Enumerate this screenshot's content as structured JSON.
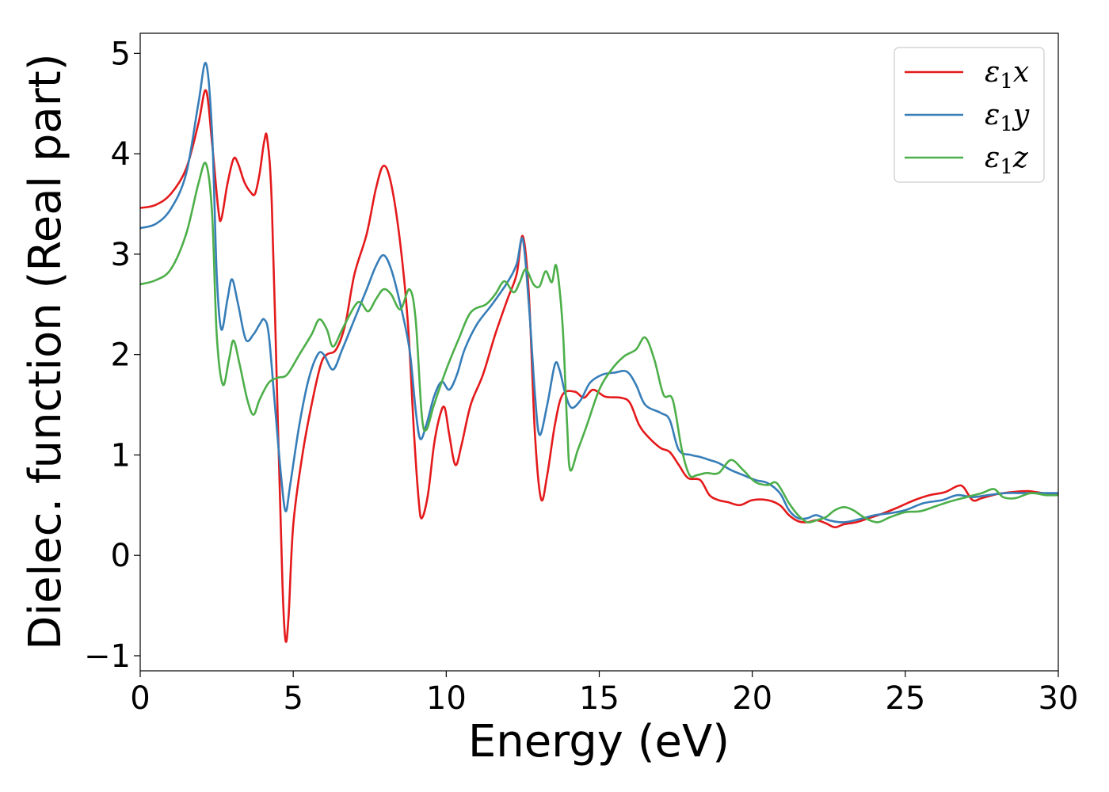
{
  "chart_data": {
    "type": "line",
    "xlabel": "Energy (eV)",
    "ylabel": "Dielec. function (Real part)",
    "xlim": [
      0,
      30
    ],
    "ylim": [
      -1.15,
      5.2
    ],
    "xticks": [
      0,
      5,
      10,
      15,
      20,
      25,
      30
    ],
    "xtick_labels": [
      "0",
      "5",
      "10",
      "15",
      "20",
      "25",
      "30"
    ],
    "yticks": [
      -1,
      0,
      1,
      2,
      3,
      4,
      5
    ],
    "ytick_labels": [
      "−1",
      "0",
      "1",
      "2",
      "3",
      "4",
      "5"
    ],
    "grid": false,
    "legend_position": "top-right",
    "series": [
      {
        "name": "ε1x",
        "label_base": "ε",
        "label_sub": "1",
        "label_var": "x",
        "color": "#e41a1c",
        "points": [
          [
            0,
            3.46
          ],
          [
            0.5,
            3.49
          ],
          [
            1.0,
            3.6
          ],
          [
            1.5,
            3.85
          ],
          [
            1.9,
            4.3
          ],
          [
            2.15,
            4.63
          ],
          [
            2.35,
            4.1
          ],
          [
            2.55,
            3.45
          ],
          [
            2.65,
            3.35
          ],
          [
            2.85,
            3.7
          ],
          [
            3.05,
            3.95
          ],
          [
            3.2,
            3.9
          ],
          [
            3.4,
            3.72
          ],
          [
            3.6,
            3.62
          ],
          [
            3.75,
            3.6
          ],
          [
            3.9,
            3.8
          ],
          [
            4.05,
            4.12
          ],
          [
            4.15,
            4.15
          ],
          [
            4.3,
            3.5
          ],
          [
            4.5,
            1.3
          ],
          [
            4.65,
            -0.3
          ],
          [
            4.75,
            -0.85
          ],
          [
            4.85,
            -0.6
          ],
          [
            5.0,
            0.3
          ],
          [
            5.3,
            1.0
          ],
          [
            5.6,
            1.5
          ],
          [
            5.9,
            1.9
          ],
          [
            6.1,
            2.0
          ],
          [
            6.4,
            2.05
          ],
          [
            6.7,
            2.3
          ],
          [
            7.0,
            2.8
          ],
          [
            7.4,
            3.2
          ],
          [
            7.7,
            3.65
          ],
          [
            7.95,
            3.88
          ],
          [
            8.2,
            3.7
          ],
          [
            8.5,
            3.1
          ],
          [
            8.75,
            2.3
          ],
          [
            8.95,
            1.2
          ],
          [
            9.1,
            0.55
          ],
          [
            9.2,
            0.37
          ],
          [
            9.4,
            0.6
          ],
          [
            9.6,
            1.1
          ],
          [
            9.8,
            1.4
          ],
          [
            9.95,
            1.47
          ],
          [
            10.1,
            1.2
          ],
          [
            10.3,
            0.9
          ],
          [
            10.5,
            1.1
          ],
          [
            10.8,
            1.5
          ],
          [
            11.2,
            1.8
          ],
          [
            11.6,
            2.2
          ],
          [
            12.0,
            2.55
          ],
          [
            12.3,
            2.8
          ],
          [
            12.5,
            3.18
          ],
          [
            12.7,
            2.6
          ],
          [
            12.9,
            1.2
          ],
          [
            13.1,
            0.56
          ],
          [
            13.3,
            0.8
          ],
          [
            13.55,
            1.3
          ],
          [
            13.8,
            1.6
          ],
          [
            14.2,
            1.63
          ],
          [
            14.5,
            1.57
          ],
          [
            14.8,
            1.65
          ],
          [
            15.2,
            1.58
          ],
          [
            15.7,
            1.57
          ],
          [
            16.0,
            1.52
          ],
          [
            16.3,
            1.3
          ],
          [
            16.6,
            1.18
          ],
          [
            17.0,
            1.07
          ],
          [
            17.3,
            1.03
          ],
          [
            17.6,
            0.9
          ],
          [
            17.9,
            0.77
          ],
          [
            18.3,
            0.75
          ],
          [
            18.6,
            0.6
          ],
          [
            18.9,
            0.55
          ],
          [
            19.2,
            0.53
          ],
          [
            19.6,
            0.5
          ],
          [
            20.0,
            0.55
          ],
          [
            20.5,
            0.55
          ],
          [
            20.9,
            0.5
          ],
          [
            21.2,
            0.4
          ],
          [
            21.5,
            0.34
          ],
          [
            21.8,
            0.33
          ],
          [
            22.1,
            0.35
          ],
          [
            22.4,
            0.32
          ],
          [
            22.7,
            0.28
          ],
          [
            23.0,
            0.31
          ],
          [
            23.4,
            0.33
          ],
          [
            23.8,
            0.37
          ],
          [
            24.2,
            0.41
          ],
          [
            24.7,
            0.47
          ],
          [
            25.3,
            0.55
          ],
          [
            25.8,
            0.6
          ],
          [
            26.3,
            0.63
          ],
          [
            26.7,
            0.69
          ],
          [
            26.9,
            0.68
          ],
          [
            27.2,
            0.55
          ],
          [
            27.5,
            0.57
          ],
          [
            28.0,
            0.61
          ],
          [
            28.5,
            0.63
          ],
          [
            29.0,
            0.64
          ],
          [
            29.5,
            0.62
          ],
          [
            30,
            0.61
          ]
        ]
      },
      {
        "name": "ε1y",
        "label_base": "ε",
        "label_sub": "1",
        "label_var": "y",
        "color": "#377eb8",
        "points": [
          [
            0,
            3.26
          ],
          [
            0.5,
            3.3
          ],
          [
            1.0,
            3.45
          ],
          [
            1.5,
            3.8
          ],
          [
            1.9,
            4.5
          ],
          [
            2.15,
            4.9
          ],
          [
            2.35,
            4.2
          ],
          [
            2.5,
            2.8
          ],
          [
            2.65,
            2.25
          ],
          [
            2.85,
            2.55
          ],
          [
            3.0,
            2.75
          ],
          [
            3.2,
            2.5
          ],
          [
            3.45,
            2.15
          ],
          [
            3.7,
            2.2
          ],
          [
            3.9,
            2.3
          ],
          [
            4.05,
            2.35
          ],
          [
            4.2,
            2.2
          ],
          [
            4.4,
            1.5
          ],
          [
            4.6,
            0.8
          ],
          [
            4.75,
            0.44
          ],
          [
            4.9,
            0.7
          ],
          [
            5.2,
            1.3
          ],
          [
            5.5,
            1.75
          ],
          [
            5.8,
            2.0
          ],
          [
            6.0,
            2.0
          ],
          [
            6.3,
            1.85
          ],
          [
            6.6,
            2.05
          ],
          [
            7.0,
            2.35
          ],
          [
            7.4,
            2.65
          ],
          [
            7.7,
            2.88
          ],
          [
            7.95,
            2.99
          ],
          [
            8.2,
            2.85
          ],
          [
            8.5,
            2.5
          ],
          [
            8.8,
            2.05
          ],
          [
            9.0,
            1.45
          ],
          [
            9.15,
            1.16
          ],
          [
            9.35,
            1.3
          ],
          [
            9.6,
            1.58
          ],
          [
            9.85,
            1.73
          ],
          [
            10.1,
            1.65
          ],
          [
            10.35,
            1.8
          ],
          [
            10.6,
            2.05
          ],
          [
            11.0,
            2.3
          ],
          [
            11.5,
            2.5
          ],
          [
            12.0,
            2.72
          ],
          [
            12.3,
            2.9
          ],
          [
            12.5,
            3.15
          ],
          [
            12.7,
            2.5
          ],
          [
            12.9,
            1.6
          ],
          [
            13.05,
            1.2
          ],
          [
            13.3,
            1.5
          ],
          [
            13.55,
            1.9
          ],
          [
            13.7,
            1.85
          ],
          [
            13.9,
            1.6
          ],
          [
            14.1,
            1.47
          ],
          [
            14.4,
            1.55
          ],
          [
            14.7,
            1.72
          ],
          [
            15.1,
            1.8
          ],
          [
            15.5,
            1.82
          ],
          [
            15.9,
            1.83
          ],
          [
            16.2,
            1.7
          ],
          [
            16.5,
            1.5
          ],
          [
            17.0,
            1.42
          ],
          [
            17.3,
            1.35
          ],
          [
            17.6,
            1.05
          ],
          [
            18.0,
            1.0
          ],
          [
            18.3,
            0.98
          ],
          [
            18.6,
            0.95
          ],
          [
            18.9,
            0.92
          ],
          [
            19.3,
            0.85
          ],
          [
            19.7,
            0.8
          ],
          [
            20.1,
            0.75
          ],
          [
            20.5,
            0.72
          ],
          [
            20.9,
            0.62
          ],
          [
            21.2,
            0.45
          ],
          [
            21.5,
            0.37
          ],
          [
            21.8,
            0.37
          ],
          [
            22.1,
            0.4
          ],
          [
            22.5,
            0.35
          ],
          [
            23.0,
            0.33
          ],
          [
            23.5,
            0.36
          ],
          [
            24.0,
            0.4
          ],
          [
            24.5,
            0.42
          ],
          [
            25.0,
            0.45
          ],
          [
            25.6,
            0.52
          ],
          [
            26.2,
            0.55
          ],
          [
            26.7,
            0.6
          ],
          [
            27.2,
            0.58
          ],
          [
            27.7,
            0.6
          ],
          [
            28.3,
            0.62
          ],
          [
            28.9,
            0.62
          ],
          [
            29.5,
            0.62
          ],
          [
            30,
            0.62
          ]
        ]
      },
      {
        "name": "ε1z",
        "label_base": "ε",
        "label_sub": "1",
        "label_var": "z",
        "color": "#4daf4a",
        "points": [
          [
            0,
            2.7
          ],
          [
            0.5,
            2.74
          ],
          [
            1.0,
            2.85
          ],
          [
            1.5,
            3.2
          ],
          [
            1.9,
            3.7
          ],
          [
            2.15,
            3.9
          ],
          [
            2.35,
            3.4
          ],
          [
            2.5,
            2.2
          ],
          [
            2.7,
            1.7
          ],
          [
            2.9,
            1.95
          ],
          [
            3.05,
            2.14
          ],
          [
            3.25,
            1.9
          ],
          [
            3.5,
            1.55
          ],
          [
            3.7,
            1.4
          ],
          [
            3.9,
            1.55
          ],
          [
            4.2,
            1.72
          ],
          [
            4.5,
            1.77
          ],
          [
            4.8,
            1.8
          ],
          [
            5.2,
            2.0
          ],
          [
            5.6,
            2.2
          ],
          [
            5.85,
            2.35
          ],
          [
            6.1,
            2.25
          ],
          [
            6.3,
            2.08
          ],
          [
            6.6,
            2.25
          ],
          [
            7.0,
            2.48
          ],
          [
            7.2,
            2.52
          ],
          [
            7.45,
            2.43
          ],
          [
            7.7,
            2.55
          ],
          [
            7.95,
            2.65
          ],
          [
            8.2,
            2.6
          ],
          [
            8.5,
            2.45
          ],
          [
            8.8,
            2.65
          ],
          [
            9.0,
            2.35
          ],
          [
            9.2,
            1.4
          ],
          [
            9.35,
            1.25
          ],
          [
            9.6,
            1.5
          ],
          [
            10.0,
            1.85
          ],
          [
            10.4,
            2.15
          ],
          [
            10.8,
            2.42
          ],
          [
            11.3,
            2.5
          ],
          [
            11.6,
            2.6
          ],
          [
            11.9,
            2.73
          ],
          [
            12.2,
            2.62
          ],
          [
            12.4,
            2.72
          ],
          [
            12.6,
            2.85
          ],
          [
            12.85,
            2.7
          ],
          [
            13.05,
            2.68
          ],
          [
            13.25,
            2.83
          ],
          [
            13.45,
            2.72
          ],
          [
            13.6,
            2.88
          ],
          [
            13.8,
            2.3
          ],
          [
            13.95,
            1.3
          ],
          [
            14.05,
            0.85
          ],
          [
            14.3,
            1.05
          ],
          [
            14.6,
            1.3
          ],
          [
            15.0,
            1.65
          ],
          [
            15.4,
            1.85
          ],
          [
            15.8,
            1.98
          ],
          [
            16.2,
            2.05
          ],
          [
            16.5,
            2.17
          ],
          [
            16.8,
            1.95
          ],
          [
            17.1,
            1.6
          ],
          [
            17.4,
            1.55
          ],
          [
            17.7,
            1.05
          ],
          [
            17.95,
            0.8
          ],
          [
            18.2,
            0.8
          ],
          [
            18.5,
            0.82
          ],
          [
            18.9,
            0.82
          ],
          [
            19.3,
            0.95
          ],
          [
            19.7,
            0.85
          ],
          [
            20.1,
            0.73
          ],
          [
            20.5,
            0.7
          ],
          [
            20.8,
            0.72
          ],
          [
            21.2,
            0.52
          ],
          [
            21.5,
            0.4
          ],
          [
            21.8,
            0.33
          ],
          [
            22.1,
            0.35
          ],
          [
            22.4,
            0.38
          ],
          [
            22.7,
            0.45
          ],
          [
            23.0,
            0.48
          ],
          [
            23.3,
            0.45
          ],
          [
            23.7,
            0.37
          ],
          [
            24.1,
            0.33
          ],
          [
            24.5,
            0.38
          ],
          [
            25.0,
            0.43
          ],
          [
            25.5,
            0.44
          ],
          [
            26.0,
            0.49
          ],
          [
            26.5,
            0.54
          ],
          [
            27.0,
            0.58
          ],
          [
            27.5,
            0.62
          ],
          [
            27.9,
            0.66
          ],
          [
            28.2,
            0.58
          ],
          [
            28.6,
            0.57
          ],
          [
            29.1,
            0.62
          ],
          [
            29.6,
            0.6
          ],
          [
            30,
            0.6
          ]
        ]
      }
    ]
  }
}
